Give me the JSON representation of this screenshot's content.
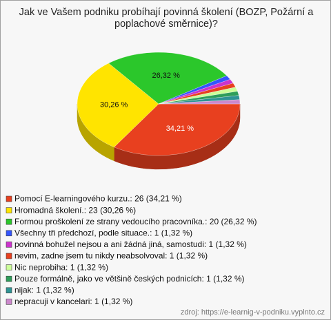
{
  "chart_data": {
    "type": "pie3d",
    "title": "Jak ve Vašem podniku probíhají povinná školení (BOZP, Požární a poplachové směrnice)?",
    "labels": [
      "Pomocí E-learningového kurzu.: 26 (34,21 %)",
      "Hromadná školení.: 23 (30,26 %)",
      "Formou proškolení ze strany vedoucího pracovníka.: 20 (26,32 %)",
      "Všechny tři předchozí, podle situace.: 1 (1,32 %)",
      "povinná bohužel nejsou a ani žádná jiná, samostudi: 1 (1,32 %)",
      "nevim, zadne jsem tu nikdy neabsolvoval: 1 (1,32 %)",
      "Nic neprobiha: 1 (1,32 %)",
      "Pouze formálně, jako ve většině českých podnicích: 1 (1,32 %)",
      "nijak: 1 (1,32 %)",
      "nepracuji v kancelari: 1 (1,32 %)"
    ],
    "values": [
      26,
      23,
      20,
      1,
      1,
      1,
      1,
      1,
      1,
      1
    ],
    "value_labels": [
      "34,21 %",
      "30,26 %",
      "26,32 %",
      null,
      null,
      null,
      null,
      null,
      null,
      null
    ],
    "colors": [
      "#e8401f",
      "#ffe400",
      "#2bc72b",
      "#3355ff",
      "#cc33cc",
      "#e8401f",
      "#ccff99",
      "#2e9e5a",
      "#2e9494",
      "#cc88cc"
    ],
    "source": "zdroj: https://e-learnig-v-podniku.vyplnto.cz"
  }
}
